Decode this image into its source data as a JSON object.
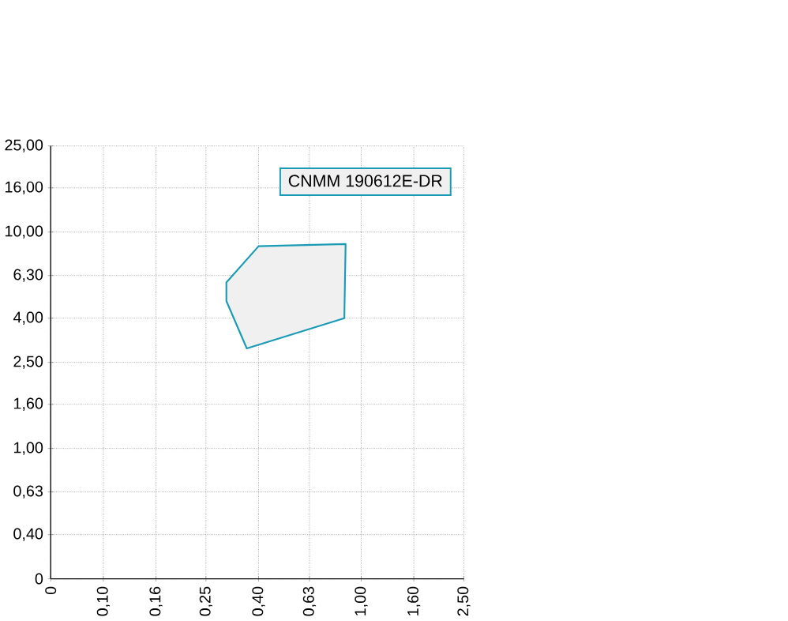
{
  "chart_data": {
    "type": "area",
    "log": "xy",
    "xlim": [
      0.0625,
      2.5
    ],
    "ylim": [
      0.25,
      25
    ],
    "xticks": [
      {
        "value": 0.0625,
        "label": "0"
      },
      {
        "value": 0.1,
        "label": "0,10"
      },
      {
        "value": 0.16,
        "label": "0,16"
      },
      {
        "value": 0.25,
        "label": "0,25"
      },
      {
        "value": 0.4,
        "label": "0,40"
      },
      {
        "value": 0.63,
        "label": "0,63"
      },
      {
        "value": 1.0,
        "label": "1,00"
      },
      {
        "value": 1.6,
        "label": "1,60"
      },
      {
        "value": 2.5,
        "label": "2,50"
      }
    ],
    "yticks": [
      {
        "value": 0.25,
        "label": "0"
      },
      {
        "value": 0.4,
        "label": "0,40"
      },
      {
        "value": 0.63,
        "label": "0,63"
      },
      {
        "value": 1.0,
        "label": "1,00"
      },
      {
        "value": 1.6,
        "label": "1,60"
      },
      {
        "value": 2.5,
        "label": "2,50"
      },
      {
        "value": 4.0,
        "label": "4,00"
      },
      {
        "value": 6.3,
        "label": "6,30"
      },
      {
        "value": 10.0,
        "label": "10,00"
      },
      {
        "value": 16.0,
        "label": "16,00"
      },
      {
        "value": 25.0,
        "label": "25,00"
      }
    ],
    "grid": true,
    "legend": "top right",
    "series": [
      {
        "name": "CNMM 190612E-DR",
        "color": "#1a9bb5",
        "x": [
          0.4,
          0.87,
          0.86,
          0.36,
          0.3,
          0.3
        ],
        "values": [
          8.6,
          8.8,
          4.0,
          2.9,
          4.8,
          5.85
        ]
      }
    ]
  }
}
